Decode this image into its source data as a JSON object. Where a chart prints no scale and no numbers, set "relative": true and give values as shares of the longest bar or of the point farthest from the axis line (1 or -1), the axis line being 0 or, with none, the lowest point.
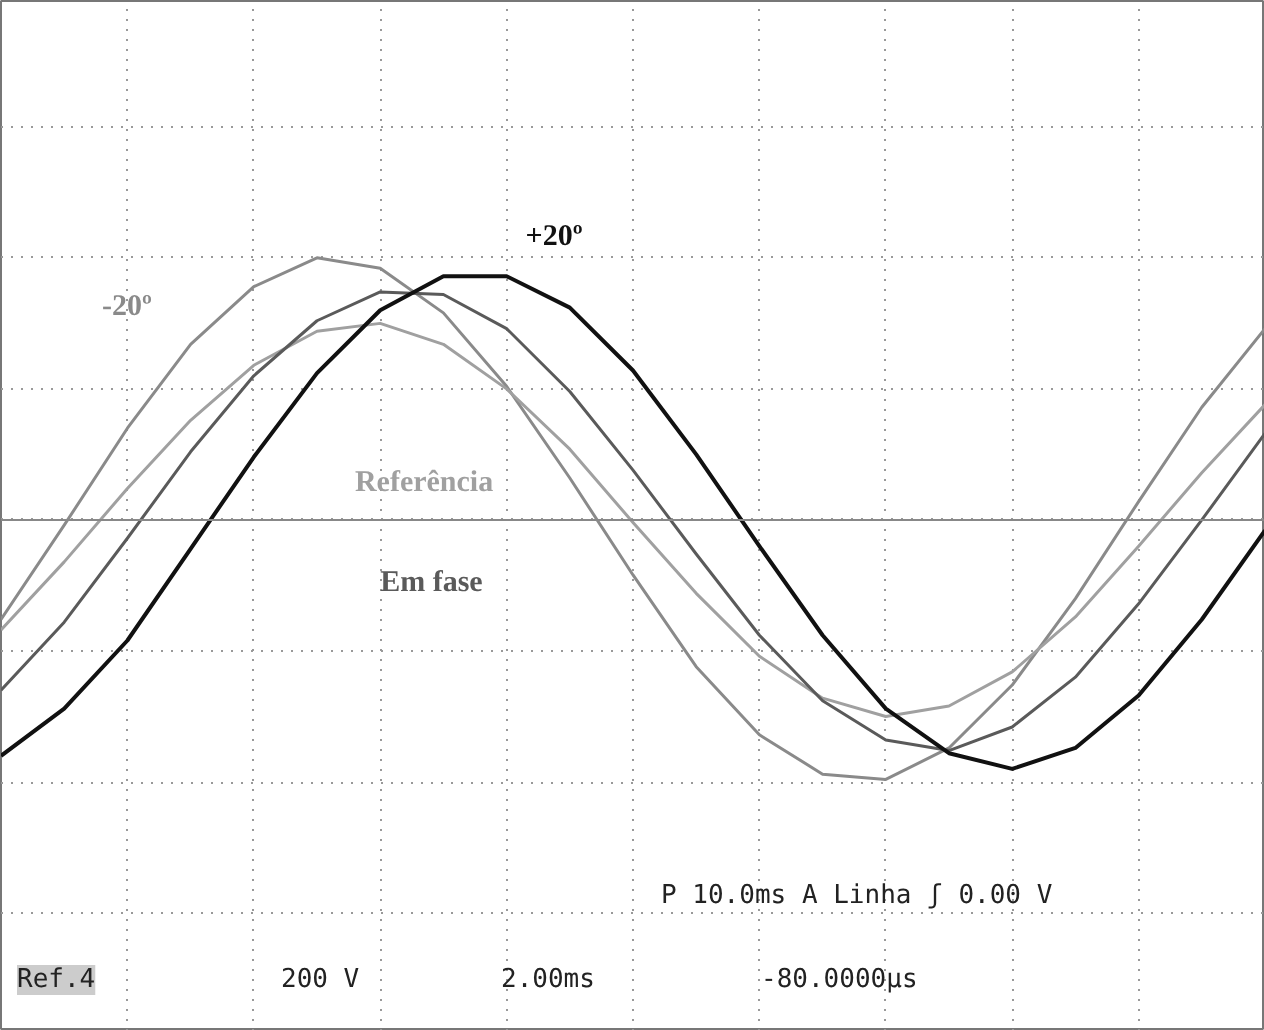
{
  "chart_data": {
    "type": "line",
    "relative": true,
    "grid": true,
    "legend": false,
    "marker": "none",
    "line_style": "solid",
    "categories": [
      null,
      null,
      null,
      null,
      null,
      null,
      null,
      null,
      null,
      null,
      null,
      null,
      null,
      null,
      null,
      null,
      null,
      null,
      null,
      null,
      null
    ],
    "series": [
      {
        "name": "-20º",
        "color": "#8a8a8a",
        "values": [
          -0.38,
          -0.02,
          0.35,
          0.67,
          0.89,
          1.0,
          0.96,
          0.79,
          0.51,
          0.16,
          -0.21,
          -0.56,
          -0.82,
          -0.97,
          -0.99,
          -0.87,
          -0.63,
          -0.3,
          0.07,
          0.43,
          0.73
        ]
      },
      {
        "name": "Referência",
        "color": "#a0a0a0",
        "values": [
          -0.42,
          -0.16,
          0.12,
          0.38,
          0.59,
          0.72,
          0.75,
          0.67,
          0.5,
          0.27,
          -0.01,
          -0.28,
          -0.52,
          -0.68,
          -0.75,
          -0.71,
          -0.58,
          -0.37,
          -0.1,
          0.18,
          0.44
        ]
      },
      {
        "name": "Em fase",
        "color": "#5a5a5a",
        "values": [
          -0.65,
          -0.39,
          -0.07,
          0.26,
          0.55,
          0.76,
          0.87,
          0.86,
          0.73,
          0.49,
          0.19,
          -0.13,
          -0.44,
          -0.69,
          -0.84,
          -0.88,
          -0.79,
          -0.6,
          -0.32,
          0.0,
          0.33
        ]
      },
      {
        "name": "+20º",
        "color": "#111111",
        "values": [
          -0.9,
          -0.72,
          -0.46,
          -0.11,
          0.24,
          0.56,
          0.8,
          0.93,
          0.93,
          0.81,
          0.57,
          0.25,
          -0.1,
          -0.44,
          -0.72,
          -0.89,
          -0.95,
          -0.87,
          -0.67,
          -0.38,
          -0.04
        ]
      }
    ],
    "annotations": [
      "P 10.0ms  A Linha ʃ    0.00 V",
      "Ref.4",
      "200 V",
      "2.00ms",
      "-80.0000µs"
    ]
  }
}
